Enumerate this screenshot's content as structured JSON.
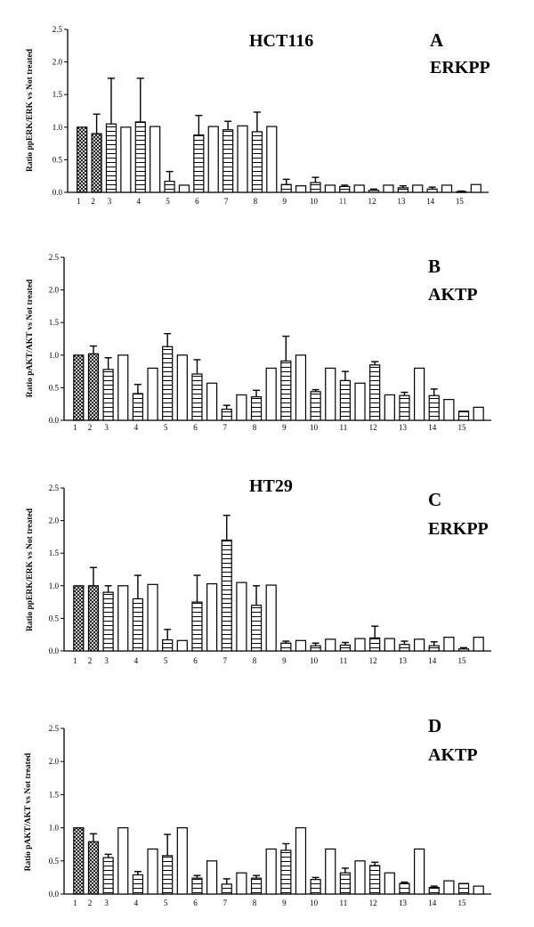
{
  "chart_data": [
    {
      "type": "bar",
      "panel_label": "A",
      "title": "HCT116",
      "subtitle": "ERKPP",
      "ylabel": "Ratio ppERK/ERK vs Not treated",
      "ylim": [
        0,
        2.5
      ],
      "yticks": [
        "0.0",
        "0.5",
        "1.0",
        "1.5",
        "2.0",
        "2.5"
      ],
      "categories": [
        "1",
        "2",
        "3",
        "4",
        "5",
        "6",
        "7",
        "8",
        "9",
        "10",
        "11",
        "12",
        "13",
        "14",
        "15"
      ],
      "bars": [
        {
          "group": 1,
          "pattern": "cross",
          "value": 1.0,
          "err": 0
        },
        {
          "group": 2,
          "pattern": "cross",
          "value": 0.9,
          "err": 0.3
        },
        {
          "group": 3,
          "pattern": "hlines",
          "value": 1.05,
          "err": 0.7
        },
        {
          "group": 3,
          "pattern": "open",
          "value": 1.0,
          "err": 0
        },
        {
          "group": 4,
          "pattern": "hlines",
          "value": 1.08,
          "err": 0.67
        },
        {
          "group": 4,
          "pattern": "open",
          "value": 1.01,
          "err": 0
        },
        {
          "group": 5,
          "pattern": "hlines",
          "value": 0.17,
          "err": 0.15
        },
        {
          "group": 5,
          "pattern": "open",
          "value": 0.11,
          "err": 0
        },
        {
          "group": 6,
          "pattern": "hlines",
          "value": 0.88,
          "err": 0.3
        },
        {
          "group": 6,
          "pattern": "open",
          "value": 1.01,
          "err": 0
        },
        {
          "group": 7,
          "pattern": "hlines",
          "value": 0.96,
          "err": 0.13
        },
        {
          "group": 7,
          "pattern": "open",
          "value": 1.02,
          "err": 0
        },
        {
          "group": 8,
          "pattern": "hlines",
          "value": 0.93,
          "err": 0.3
        },
        {
          "group": 8,
          "pattern": "open",
          "value": 1.01,
          "err": 0
        },
        {
          "group": 9,
          "pattern": "hlines",
          "value": 0.12,
          "err": 0.08
        },
        {
          "group": 9,
          "pattern": "open",
          "value": 0.1,
          "err": 0
        },
        {
          "group": 10,
          "pattern": "hlines",
          "value": 0.15,
          "err": 0.08
        },
        {
          "group": 10,
          "pattern": "open",
          "value": 0.11,
          "err": 0
        },
        {
          "group": 11,
          "pattern": "hlines",
          "value": 0.09,
          "err": 0.02
        },
        {
          "group": 11,
          "pattern": "open",
          "value": 0.11,
          "err": 0
        },
        {
          "group": 12,
          "pattern": "hlines",
          "value": 0.03,
          "err": 0.02
        },
        {
          "group": 12,
          "pattern": "open",
          "value": 0.11,
          "err": 0
        },
        {
          "group": 13,
          "pattern": "hlines",
          "value": 0.07,
          "err": 0.03
        },
        {
          "group": 13,
          "pattern": "open",
          "value": 0.11,
          "err": 0
        },
        {
          "group": 14,
          "pattern": "hlines",
          "value": 0.05,
          "err": 0.03
        },
        {
          "group": 14,
          "pattern": "open",
          "value": 0.11,
          "err": 0
        },
        {
          "group": 15,
          "pattern": "hlines",
          "value": 0.01,
          "err": 0.01
        },
        {
          "group": 15,
          "pattern": "open",
          "value": 0.12,
          "err": 0
        }
      ],
      "category_blue": [
        false,
        false,
        false,
        false,
        false,
        false,
        false,
        false,
        false,
        false,
        true,
        false,
        false,
        false,
        false
      ],
      "grid": false,
      "legend": "none"
    },
    {
      "type": "bar",
      "panel_label": "B",
      "title": "",
      "subtitle": "AKTP",
      "ylabel": "Ratio pAKT/AKT vs Not treated",
      "ylim": [
        0,
        2.5
      ],
      "yticks": [
        "0.0",
        "0.5",
        "1.0",
        "1.5",
        "2.0",
        "2.5"
      ],
      "categories": [
        "1",
        "2",
        "3",
        "4",
        "5",
        "6",
        "7",
        "8",
        "9",
        "10",
        "11",
        "12",
        "13",
        "14",
        "15"
      ],
      "bars": [
        {
          "group": 1,
          "pattern": "cross",
          "value": 1.0,
          "err": 0
        },
        {
          "group": 2,
          "pattern": "cross",
          "value": 1.02,
          "err": 0.12
        },
        {
          "group": 3,
          "pattern": "hlines",
          "value": 0.78,
          "err": 0.18
        },
        {
          "group": 3,
          "pattern": "open",
          "value": 1.0,
          "err": 0
        },
        {
          "group": 4,
          "pattern": "hlines",
          "value": 0.41,
          "err": 0.14
        },
        {
          "group": 4,
          "pattern": "open",
          "value": 0.8,
          "err": 0
        },
        {
          "group": 5,
          "pattern": "hlines",
          "value": 1.13,
          "err": 0.2
        },
        {
          "group": 5,
          "pattern": "open",
          "value": 1.0,
          "err": 0
        },
        {
          "group": 6,
          "pattern": "hlines",
          "value": 0.71,
          "err": 0.22
        },
        {
          "group": 6,
          "pattern": "open",
          "value": 0.57,
          "err": 0
        },
        {
          "group": 7,
          "pattern": "hlines",
          "value": 0.17,
          "err": 0.06
        },
        {
          "group": 7,
          "pattern": "open",
          "value": 0.39,
          "err": 0
        },
        {
          "group": 8,
          "pattern": "hlines",
          "value": 0.36,
          "err": 0.1
        },
        {
          "group": 8,
          "pattern": "open",
          "value": 0.8,
          "err": 0
        },
        {
          "group": 9,
          "pattern": "hlines",
          "value": 0.91,
          "err": 0.38
        },
        {
          "group": 9,
          "pattern": "open",
          "value": 1.0,
          "err": 0
        },
        {
          "group": 10,
          "pattern": "hlines",
          "value": 0.44,
          "err": 0.03
        },
        {
          "group": 10,
          "pattern": "open",
          "value": 0.8,
          "err": 0
        },
        {
          "group": 11,
          "pattern": "hlines",
          "value": 0.61,
          "err": 0.14
        },
        {
          "group": 11,
          "pattern": "open",
          "value": 0.57,
          "err": 0
        },
        {
          "group": 12,
          "pattern": "hlines",
          "value": 0.85,
          "err": 0.05
        },
        {
          "group": 12,
          "pattern": "open",
          "value": 0.39,
          "err": 0
        },
        {
          "group": 13,
          "pattern": "hlines",
          "value": 0.38,
          "err": 0.05
        },
        {
          "group": 13,
          "pattern": "open",
          "value": 0.8,
          "err": 0
        },
        {
          "group": 14,
          "pattern": "hlines",
          "value": 0.38,
          "err": 0.1
        },
        {
          "group": 14,
          "pattern": "open",
          "value": 0.32,
          "err": 0
        },
        {
          "group": 15,
          "pattern": "hlines",
          "value": 0.14,
          "err": 0
        },
        {
          "group": 15,
          "pattern": "open",
          "value": 0.2,
          "err": 0
        }
      ],
      "category_blue": [
        false,
        false,
        false,
        false,
        false,
        false,
        false,
        false,
        false,
        false,
        false,
        false,
        false,
        false,
        false
      ],
      "grid": false,
      "legend": "none"
    },
    {
      "type": "bar",
      "panel_label": "C",
      "title": "HT29",
      "subtitle": "ERKPP",
      "ylabel": "Ratio ppERK/ERK vs Not treated",
      "ylim": [
        0,
        2.5
      ],
      "yticks": [
        "0.0",
        "0.5",
        "1.0",
        "1.5",
        "2.0",
        "2.5"
      ],
      "categories": [
        "1",
        "2",
        "3",
        "4",
        "5",
        "6",
        "7",
        "8",
        "9",
        "10",
        "11",
        "12",
        "13",
        "14",
        "15"
      ],
      "bars": [
        {
          "group": 1,
          "pattern": "cross",
          "value": 1.0,
          "err": 0
        },
        {
          "group": 2,
          "pattern": "cross",
          "value": 1.0,
          "err": 0.28
        },
        {
          "group": 3,
          "pattern": "hlines",
          "value": 0.9,
          "err": 0.1
        },
        {
          "group": 3,
          "pattern": "open",
          "value": 1.0,
          "err": 0
        },
        {
          "group": 4,
          "pattern": "hlines",
          "value": 0.8,
          "err": 0.36
        },
        {
          "group": 4,
          "pattern": "open",
          "value": 1.02,
          "err": 0
        },
        {
          "group": 5,
          "pattern": "hlines",
          "value": 0.17,
          "err": 0.16
        },
        {
          "group": 5,
          "pattern": "open",
          "value": 0.16,
          "err": 0
        },
        {
          "group": 6,
          "pattern": "hlines",
          "value": 0.75,
          "err": 0.41
        },
        {
          "group": 6,
          "pattern": "open",
          "value": 1.03,
          "err": 0
        },
        {
          "group": 7,
          "pattern": "hlines",
          "value": 1.7,
          "err": 0.38
        },
        {
          "group": 7,
          "pattern": "open",
          "value": 1.05,
          "err": 0
        },
        {
          "group": 8,
          "pattern": "hlines",
          "value": 0.7,
          "err": 0.3
        },
        {
          "group": 8,
          "pattern": "open",
          "value": 1.01,
          "err": 0
        },
        {
          "group": 9,
          "pattern": "hlines",
          "value": 0.12,
          "err": 0.03
        },
        {
          "group": 9,
          "pattern": "open",
          "value": 0.16,
          "err": 0
        },
        {
          "group": 10,
          "pattern": "hlines",
          "value": 0.08,
          "err": 0.04
        },
        {
          "group": 10,
          "pattern": "open",
          "value": 0.18,
          "err": 0
        },
        {
          "group": 11,
          "pattern": "hlines",
          "value": 0.09,
          "err": 0.04
        },
        {
          "group": 11,
          "pattern": "open",
          "value": 0.19,
          "err": 0
        },
        {
          "group": 12,
          "pattern": "hlines",
          "value": 0.2,
          "err": 0.18
        },
        {
          "group": 12,
          "pattern": "open",
          "value": 0.19,
          "err": 0
        },
        {
          "group": 13,
          "pattern": "hlines",
          "value": 0.1,
          "err": 0.05
        },
        {
          "group": 13,
          "pattern": "open",
          "value": 0.18,
          "err": 0
        },
        {
          "group": 14,
          "pattern": "hlines",
          "value": 0.08,
          "err": 0.06
        },
        {
          "group": 14,
          "pattern": "open",
          "value": 0.21,
          "err": 0
        },
        {
          "group": 15,
          "pattern": "hlines",
          "value": 0.03,
          "err": 0.02
        },
        {
          "group": 15,
          "pattern": "open",
          "value": 0.21,
          "err": 0
        }
      ],
      "category_blue": [
        false,
        false,
        false,
        false,
        false,
        false,
        false,
        false,
        false,
        false,
        false,
        false,
        false,
        false,
        false
      ],
      "grid": false,
      "legend": "none"
    },
    {
      "type": "bar",
      "panel_label": "D",
      "title": "",
      "subtitle": "AKTP",
      "ylabel": "Ratio pAKT/AKT vs Not treated",
      "ylim": [
        0,
        2.5
      ],
      "yticks": [
        "0.0",
        "0.5",
        "1.0",
        "1.5",
        "2.0",
        "2.5"
      ],
      "categories": [
        "1",
        "2",
        "3",
        "4",
        "5",
        "6",
        "7",
        "8",
        "9",
        "10",
        "11",
        "12",
        "13",
        "14",
        "15"
      ],
      "bars": [
        {
          "group": 1,
          "pattern": "cross",
          "value": 1.0,
          "err": 0
        },
        {
          "group": 2,
          "pattern": "cross",
          "value": 0.79,
          "err": 0.12
        },
        {
          "group": 3,
          "pattern": "hlines",
          "value": 0.55,
          "err": 0.05
        },
        {
          "group": 3,
          "pattern": "open",
          "value": 1.0,
          "err": 0
        },
        {
          "group": 4,
          "pattern": "hlines",
          "value": 0.29,
          "err": 0.05
        },
        {
          "group": 4,
          "pattern": "open",
          "value": 0.68,
          "err": 0
        },
        {
          "group": 5,
          "pattern": "hlines",
          "value": 0.58,
          "err": 0.32
        },
        {
          "group": 5,
          "pattern": "open",
          "value": 1.0,
          "err": 0
        },
        {
          "group": 6,
          "pattern": "hlines",
          "value": 0.24,
          "err": 0.04
        },
        {
          "group": 6,
          "pattern": "open",
          "value": 0.5,
          "err": 0
        },
        {
          "group": 7,
          "pattern": "hlines",
          "value": 0.15,
          "err": 0.08
        },
        {
          "group": 7,
          "pattern": "open",
          "value": 0.32,
          "err": 0
        },
        {
          "group": 8,
          "pattern": "hlines",
          "value": 0.24,
          "err": 0.04
        },
        {
          "group": 8,
          "pattern": "open",
          "value": 0.68,
          "err": 0
        },
        {
          "group": 9,
          "pattern": "hlines",
          "value": 0.66,
          "err": 0.1
        },
        {
          "group": 9,
          "pattern": "open",
          "value": 1.0,
          "err": 0
        },
        {
          "group": 10,
          "pattern": "hlines",
          "value": 0.22,
          "err": 0.03
        },
        {
          "group": 10,
          "pattern": "open",
          "value": 0.68,
          "err": 0
        },
        {
          "group": 11,
          "pattern": "hlines",
          "value": 0.32,
          "err": 0.07
        },
        {
          "group": 11,
          "pattern": "open",
          "value": 0.5,
          "err": 0
        },
        {
          "group": 12,
          "pattern": "hlines",
          "value": 0.43,
          "err": 0.05
        },
        {
          "group": 12,
          "pattern": "open",
          "value": 0.32,
          "err": 0
        },
        {
          "group": 13,
          "pattern": "hlines",
          "value": 0.16,
          "err": 0.02
        },
        {
          "group": 13,
          "pattern": "open",
          "value": 0.68,
          "err": 0
        },
        {
          "group": 14,
          "pattern": "hlines",
          "value": 0.1,
          "err": 0.02
        },
        {
          "group": 14,
          "pattern": "open",
          "value": 0.2,
          "err": 0
        },
        {
          "group": 15,
          "pattern": "hlines",
          "value": 0.16,
          "err": 0
        },
        {
          "group": 15,
          "pattern": "open",
          "value": 0.12,
          "err": 0
        }
      ],
      "category_blue": [
        false,
        false,
        false,
        false,
        false,
        false,
        false,
        false,
        false,
        false,
        false,
        false,
        false,
        false,
        false
      ],
      "grid": false,
      "legend": "none"
    }
  ]
}
